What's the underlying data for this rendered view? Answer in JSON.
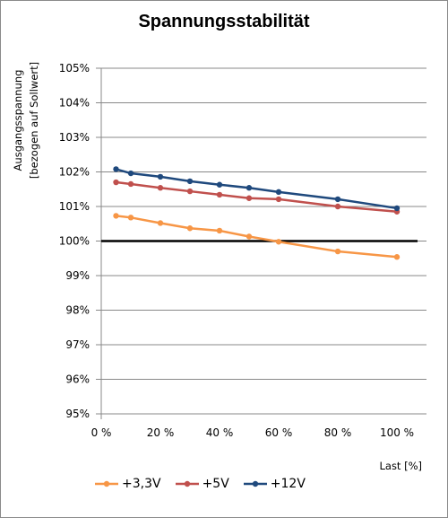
{
  "chart_data": {
    "type": "line",
    "title": "Spannungsstabilität",
    "ylabel_line1": "Ausgangsspannung",
    "ylabel_line2": "[bezogen auf Sollwert]",
    "xlabel": "Last [%]",
    "xlim": [
      0,
      110
    ],
    "ylim": [
      95,
      105
    ],
    "x_ticks": [
      0,
      20,
      40,
      60,
      80,
      100
    ],
    "x_tick_labels": [
      "0 %",
      "20 %",
      "40 %",
      "60 %",
      "80 %",
      "100 %"
    ],
    "y_ticks": [
      95,
      96,
      97,
      98,
      99,
      100,
      101,
      102,
      103,
      104,
      105
    ],
    "y_tick_labels": [
      "95%",
      "96%",
      "97%",
      "98%",
      "99%",
      "100%",
      "101%",
      "102%",
      "103%",
      "104%",
      "105%"
    ],
    "reference_line": {
      "y": 100,
      "color": "#000000"
    },
    "series": [
      {
        "name": "+3,3V",
        "color": "#f79646",
        "x": [
          5,
          10,
          20,
          30,
          40,
          50,
          60,
          80,
          100
        ],
        "y": [
          100.73,
          100.68,
          100.52,
          100.37,
          100.3,
          100.13,
          99.98,
          99.7,
          99.54
        ]
      },
      {
        "name": "+5V",
        "color": "#c0504d",
        "x": [
          5,
          10,
          20,
          30,
          40,
          50,
          60,
          80,
          100
        ],
        "y": [
          101.7,
          101.65,
          101.54,
          101.44,
          101.34,
          101.24,
          101.21,
          101.0,
          100.85
        ]
      },
      {
        "name": "+12V",
        "color": "#1f497d",
        "x": [
          5,
          10,
          20,
          30,
          40,
          50,
          60,
          80,
          100
        ],
        "y": [
          102.08,
          101.96,
          101.86,
          101.73,
          101.63,
          101.54,
          101.42,
          101.21,
          100.95
        ]
      }
    ],
    "grid": "horizontal",
    "legend": "bottom"
  }
}
